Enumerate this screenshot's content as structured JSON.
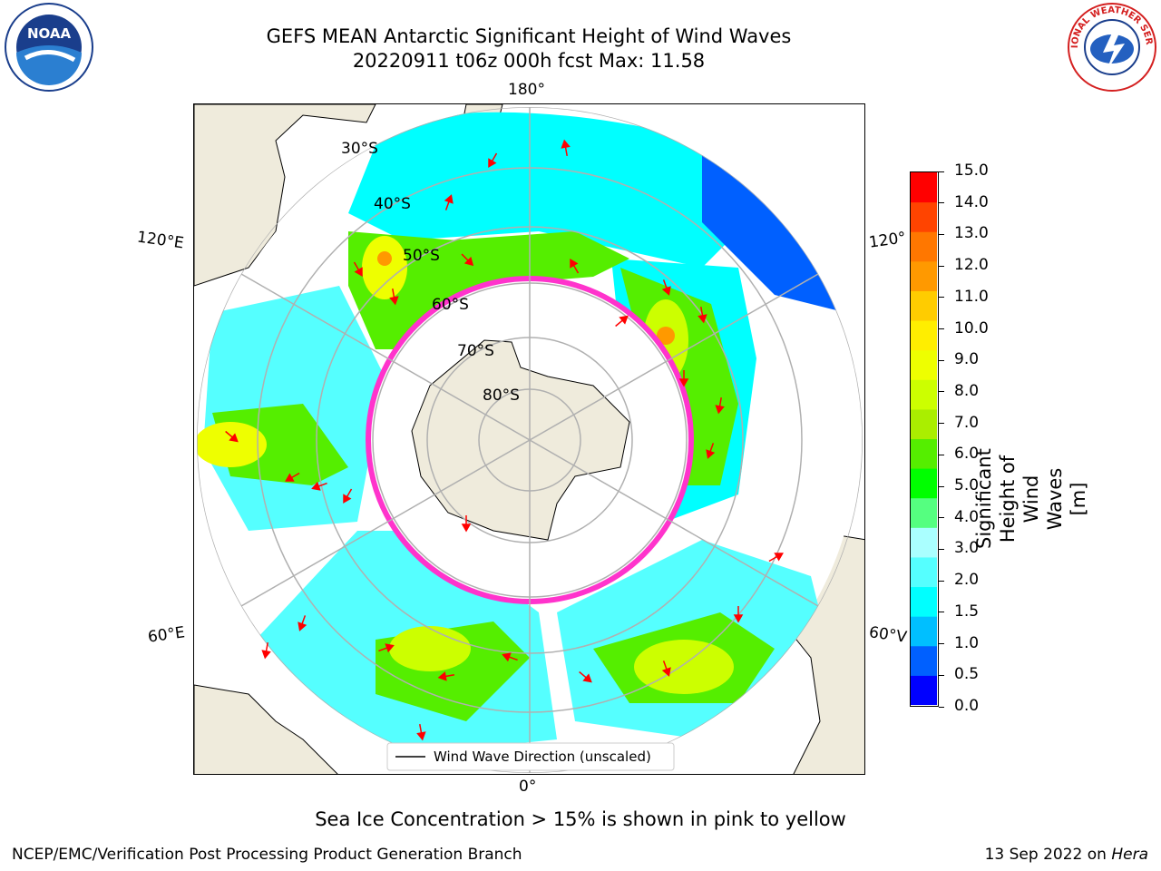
{
  "title": {
    "line1": "GEFS MEAN Antarctic Significant Height of Wind Waves",
    "line2": "20220911 t06z 000h fcst   Max: 11.58"
  },
  "map": {
    "projection": "south-polar-stereographic",
    "lon_labels": {
      "top": "180°",
      "bottom": "0°",
      "left_upper": "120°E",
      "left_lower": "60°E",
      "right_upper": "120°",
      "right_lower": "60°V"
    },
    "lat_labels": [
      "30°S",
      "40°S",
      "50°S",
      "60°S",
      "70°S",
      "80°S"
    ],
    "legend_label": "Wind Wave Direction (unscaled)",
    "land_color": "#efebdc",
    "grid_color": "#b0b0b0"
  },
  "colorbar": {
    "title": "Significant Height of Wind Waves [m]",
    "ticks": [
      "15.0",
      "14.0",
      "13.0",
      "12.0",
      "11.0",
      "10.0",
      "9.0",
      "8.0",
      "7.0",
      "6.0",
      "5.0",
      "4.0",
      "3.0",
      "2.0",
      "1.5",
      "1.0",
      "0.5",
      "0.0"
    ],
    "colors": [
      "#0000ff",
      "#0060ff",
      "#00bfff",
      "#00ffff",
      "#55ffff",
      "#aaffff",
      "#55ff80",
      "#00ff00",
      "#55ee00",
      "#aaee00",
      "#ccff00",
      "#eeff00",
      "#ffee00",
      "#ffcc00",
      "#ff9900",
      "#ff7700",
      "#ff4400",
      "#ff0000"
    ]
  },
  "ice_note": "Sea Ice Concentration > 15% is shown in pink to yellow",
  "footer": {
    "left": "NCEP/EMC/Verification Post Processing Product Generation Branch",
    "right_date": "13 Sep 2022 on ",
    "right_machine": "Hera"
  },
  "logos": {
    "left": "NOAA",
    "right": "NATIONAL WEATHER SERVICE"
  }
}
